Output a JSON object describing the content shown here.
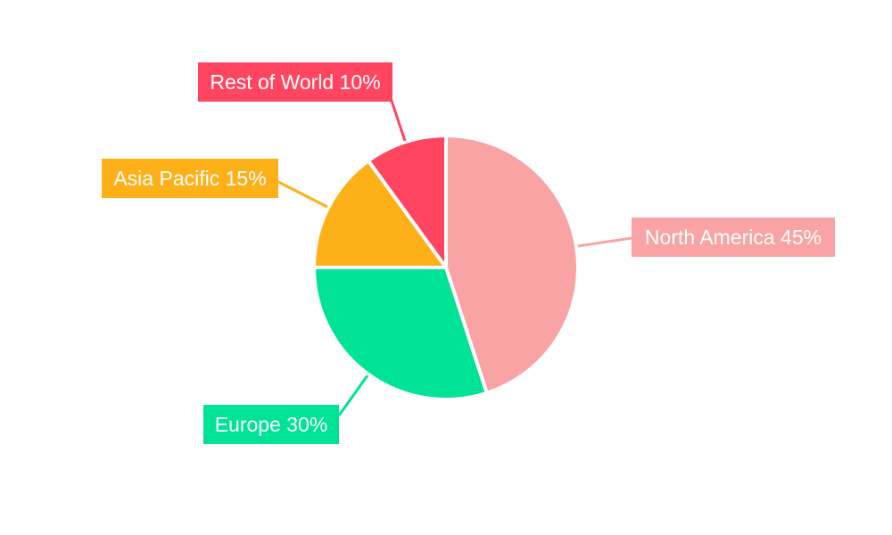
{
  "chart_data": {
    "type": "pie",
    "title": "",
    "categories": [
      "North America",
      "Europe",
      "Asia Pacific",
      "Rest of World"
    ],
    "values": [
      45,
      30,
      15,
      10
    ],
    "labels": [
      "North America 45%",
      "Europe 30%",
      "Asia Pacific 15%",
      "Rest of World 10%"
    ],
    "colors": [
      "#F9A3A4",
      "#00E396",
      "#FEB019",
      "#FF4560"
    ],
    "start_angle": "top",
    "direction": "clockwise",
    "legend": "none"
  }
}
